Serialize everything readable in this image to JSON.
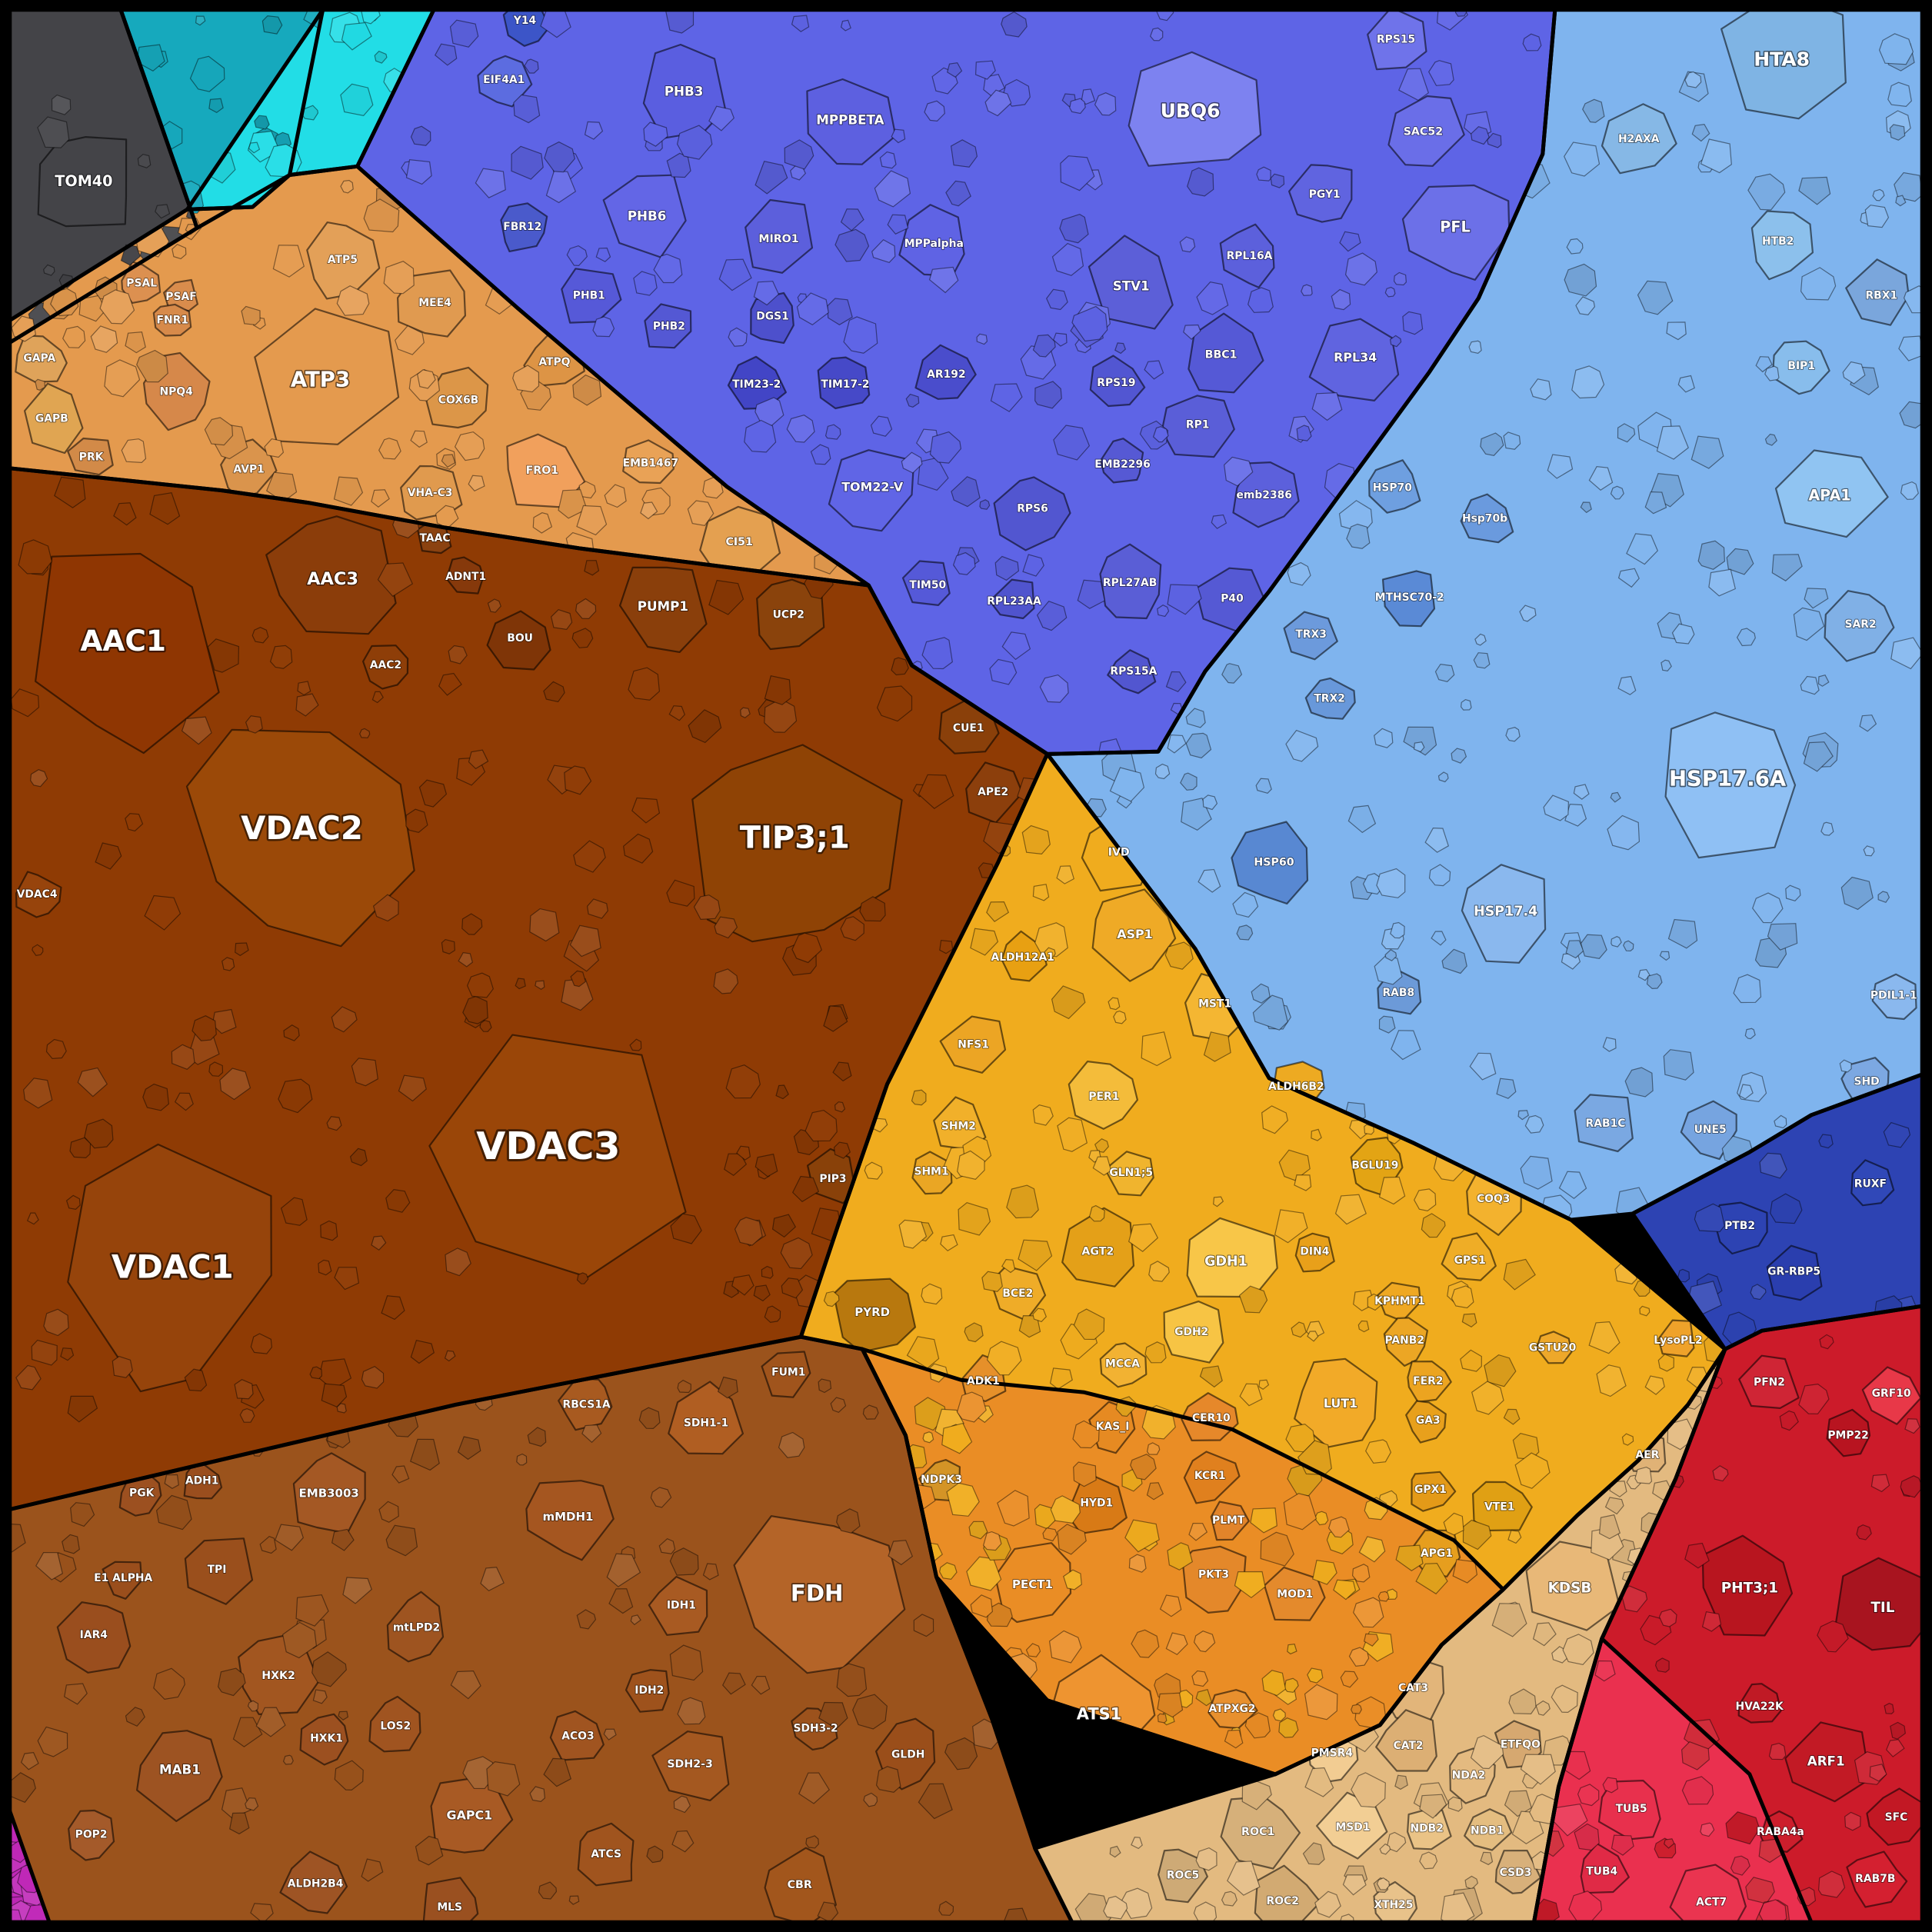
{
  "regions": [
    {
      "name": "gray",
      "color": "#444448"
    },
    {
      "name": "teal",
      "color": "#16a9bd"
    },
    {
      "name": "cyan",
      "color": "#22dde6"
    },
    {
      "name": "blue",
      "color": "#5e64e6"
    },
    {
      "name": "lblue",
      "color": "#7fb4ee"
    },
    {
      "name": "navy",
      "color": "#2d43b3"
    },
    {
      "name": "orange",
      "color": "#e49a4e"
    },
    {
      "name": "brown",
      "color": "#8f3b04"
    },
    {
      "name": "brown2",
      "color": "#9b531c"
    },
    {
      "name": "gold",
      "color": "#f0ac1e"
    },
    {
      "name": "amber",
      "color": "#ea8d25"
    },
    {
      "name": "tan",
      "color": "#e3ba80"
    },
    {
      "name": "red",
      "color": "#cc1b2a"
    },
    {
      "name": "pink",
      "color": "#ea304f"
    },
    {
      "name": "magenta",
      "color": "#c028b8"
    }
  ],
  "cells": [
    {
      "label": "TOM40",
      "color": "#444448",
      "size": 46
    },
    {
      "label": "AAC1",
      "color": "#8f3602",
      "size": 90
    },
    {
      "label": "AAC3",
      "color": "#8b3d0a",
      "size": 54
    },
    {
      "label": "AAC2",
      "color": "#8e3e08",
      "size": 22
    },
    {
      "label": "VDAC2",
      "color": "#9b4908",
      "size": 100
    },
    {
      "label": "VDAC3",
      "color": "#9a4608",
      "size": 118
    },
    {
      "label": "VDAC1",
      "color": "#96440b",
      "size": 100
    },
    {
      "label": "VDAC4",
      "color": "#97440c",
      "size": 20
    },
    {
      "label": "TIP3;1",
      "color": "#8f4305",
      "size": 96
    },
    {
      "label": "PUMP1",
      "color": "#8a3f0b",
      "size": 40
    },
    {
      "label": "UCP2",
      "color": "#8a430c",
      "size": 32
    },
    {
      "label": "BOU",
      "color": "#7f3507",
      "size": 28
    },
    {
      "label": "ADNT1",
      "color": "#86390b",
      "size": 18
    },
    {
      "label": "TAAC",
      "color": "#8b4210",
      "size": 16
    },
    {
      "label": "CUE1",
      "color": "#8a400a",
      "size": 26
    },
    {
      "label": "APE2",
      "color": "#8c3f0c",
      "size": 26
    },
    {
      "label": "PIP3",
      "color": "#894109",
      "size": 24
    },
    {
      "label": "ATP3",
      "color": "#e49a4e",
      "size": 66
    },
    {
      "label": "ATP5",
      "color": "#e3a058",
      "size": 32
    },
    {
      "label": "MEE4",
      "color": "#e09a50",
      "size": 32
    },
    {
      "label": "COX6B",
      "color": "#dc9648",
      "size": 28
    },
    {
      "label": "FRO1",
      "color": "#f1a05c",
      "size": 34
    },
    {
      "label": "EMB1467",
      "color": "#e9a256",
      "size": 22
    },
    {
      "label": "CI51",
      "color": "#e4a050",
      "size": 34
    },
    {
      "label": "ATPQ",
      "color": "#dd9445",
      "size": 24
    },
    {
      "label": "VHA-C3",
      "color": "#e09a4e",
      "size": 26
    },
    {
      "label": "AVP1",
      "color": "#da944c",
      "size": 24
    },
    {
      "label": "NPQ4",
      "color": "#d6884a",
      "size": 30
    },
    {
      "label": "GAPB",
      "color": "#e0a552",
      "size": 28
    },
    {
      "label": "GAPA",
      "color": "#dfa35a",
      "size": 22
    },
    {
      "label": "PRK",
      "color": "#d28a48",
      "size": 20
    },
    {
      "label": "PSAL",
      "color": "#dc9050",
      "size": 18
    },
    {
      "label": "PSAF",
      "color": "#d98c4c",
      "size": 16
    },
    {
      "label": "FNR1",
      "color": "#d78a4a",
      "size": 16
    },
    {
      "label": "PHB3",
      "color": "#5a5ee0",
      "size": 40
    },
    {
      "label": "MPPBETA",
      "color": "#5d60e0",
      "size": 40
    },
    {
      "label": "PHB6",
      "color": "#6366e6",
      "size": 40
    },
    {
      "label": "MIRO1",
      "color": "#5c5fdc",
      "size": 34
    },
    {
      "label": "MPPalpha",
      "color": "#5f63e4",
      "size": 32
    },
    {
      "label": "PHB1",
      "color": "#5659d8",
      "size": 26
    },
    {
      "label": "PHB2",
      "color": "#5458d4",
      "size": 22
    },
    {
      "label": "DGS1",
      "color": "#4d50cc",
      "size": 22
    },
    {
      "label": "TIM23-2",
      "color": "#4245c6",
      "size": 24
    },
    {
      "label": "TIM17-2",
      "color": "#4649c8",
      "size": 24
    },
    {
      "label": "AR192",
      "color": "#4a4dcc",
      "size": 26
    },
    {
      "label": "TOM22-V",
      "color": "#6065e6",
      "size": 38
    },
    {
      "label": "TIM50",
      "color": "#5559d8",
      "size": 22
    },
    {
      "label": "UBQ6",
      "color": "#7d82f0",
      "size": 60
    },
    {
      "label": "RPS15",
      "color": "#6f73ea",
      "size": 30
    },
    {
      "label": "SAC52",
      "color": "#6a6ee8",
      "size": 34
    },
    {
      "label": "PGY1",
      "color": "#6064e0",
      "size": 28
    },
    {
      "label": "PFL",
      "color": "#6c70e8",
      "size": 46
    },
    {
      "label": "STV1",
      "color": "#5c5fd8",
      "size": 40
    },
    {
      "label": "RPL16A",
      "color": "#5c60dc",
      "size": 26
    },
    {
      "label": "BBC1",
      "color": "#5559d6",
      "size": 34
    },
    {
      "label": "RPL34",
      "color": "#6064e0",
      "size": 38
    },
    {
      "label": "RP1",
      "color": "#5a5ed8",
      "size": 30
    },
    {
      "label": "RPS19",
      "color": "#5256d2",
      "size": 22
    },
    {
      "label": "EMB2296",
      "color": "#5659d4",
      "size": 20
    },
    {
      "label": "emb2386",
      "color": "#5c60dc",
      "size": 28
    },
    {
      "label": "RPS6",
      "color": "#5256d0",
      "size": 32
    },
    {
      "label": "RPL27AB",
      "color": "#5a5ed6",
      "size": 32
    },
    {
      "label": "P40",
      "color": "#5559d4",
      "size": 30
    },
    {
      "label": "RPL23AA",
      "color": "#5054ce",
      "size": 20
    },
    {
      "label": "RPS15A",
      "color": "#5256d0",
      "size": 20
    },
    {
      "label": "Y14",
      "color": "#3c55c8",
      "size": 20
    },
    {
      "label": "EIF4A1",
      "color": "#5c6ce0",
      "size": 22
    },
    {
      "label": "FBR12",
      "color": "#4a5acb",
      "size": 22
    },
    {
      "label": "HTA8",
      "color": "#7fb4e4",
      "size": 60
    },
    {
      "label": "H2AXA",
      "color": "#86b8e6",
      "size": 30
    },
    {
      "label": "HTB2",
      "color": "#8cc0ec",
      "size": 30
    },
    {
      "label": "RBX1",
      "color": "#7aa6dc",
      "size": 28
    },
    {
      "label": "BIP1",
      "color": "#88bdec",
      "size": 24
    },
    {
      "label": "APA1",
      "color": "#90c4f2",
      "size": 46
    },
    {
      "label": "SAR2",
      "color": "#80b0e6",
      "size": 30
    },
    {
      "label": "HSP17.6A",
      "color": "#8fc0f4",
      "size": 66
    },
    {
      "label": "HSP17.4",
      "color": "#8ab8ee",
      "size": 42
    },
    {
      "label": "HSP70",
      "color": "#6e9fe0",
      "size": 24
    },
    {
      "label": "Hsp70b",
      "color": "#6a9ade",
      "size": 24
    },
    {
      "label": "MTHSC70-2",
      "color": "#5a8ad6",
      "size": 26
    },
    {
      "label": "HSP60",
      "color": "#5888d2",
      "size": 34
    },
    {
      "label": "TRX3",
      "color": "#6c9adc",
      "size": 24
    },
    {
      "label": "TRX2",
      "color": "#6898da",
      "size": 20
    },
    {
      "label": "RAB1C",
      "color": "#7aa8e2",
      "size": 28
    },
    {
      "label": "UNE5",
      "color": "#76a4e0",
      "size": 24
    },
    {
      "label": "RAB8",
      "color": "#6c9ad8",
      "size": 22
    },
    {
      "label": "SHD",
      "color": "#7ca8e2",
      "size": 22
    },
    {
      "label": "PDIL1-1",
      "color": "#8ab8ee",
      "size": 20
    },
    {
      "label": "PTB2",
      "color": "#2d43b3",
      "size": 24
    },
    {
      "label": "GR-RBP5",
      "color": "#2a3eae",
      "size": 26
    },
    {
      "label": "RUXF",
      "color": "#3048b8",
      "size": 20
    },
    {
      "label": "TIL",
      "color": "#a8141f",
      "size": 44
    },
    {
      "label": "PHT3;1",
      "color": "#b8151f",
      "size": 44
    },
    {
      "label": "ARF1",
      "color": "#c21a25",
      "size": 40
    },
    {
      "label": "PFN2",
      "color": "#cf2535",
      "size": 28
    },
    {
      "label": "GRF10",
      "color": "#e83848",
      "size": 24
    },
    {
      "label": "PMP22",
      "color": "#b81420",
      "size": 20
    },
    {
      "label": "HVA22K",
      "color": "#c01a25",
      "size": 18
    },
    {
      "label": "SFC",
      "color": "#c21824",
      "size": 24
    },
    {
      "label": "TUB5",
      "color": "#e8304d",
      "size": 28
    },
    {
      "label": "TUB4",
      "color": "#e02a46",
      "size": 22
    },
    {
      "label": "ACT7",
      "color": "#ea3450",
      "size": 32
    },
    {
      "label": "RAB7B",
      "color": "#d42030",
      "size": 24
    },
    {
      "label": "RABA4a",
      "color": "#cc1e2c",
      "size": 18
    },
    {
      "label": "IVD",
      "color": "#f0ac1e",
      "size": 34
    },
    {
      "label": "ASP1",
      "color": "#efaa26",
      "size": 38
    },
    {
      "label": "ALDH12A1",
      "color": "#e8a012",
      "size": 20
    },
    {
      "label": "MST1",
      "color": "#f4b632",
      "size": 30
    },
    {
      "label": "NFS1",
      "color": "#eca524",
      "size": 28
    },
    {
      "label": "PER1",
      "color": "#f4bc3a",
      "size": 30
    },
    {
      "label": "ALDH6B2",
      "color": "#edaa22",
      "size": 26
    },
    {
      "label": "SHM2",
      "color": "#f1b02a",
      "size": 24
    },
    {
      "label": "SHM1",
      "color": "#eaa624",
      "size": 20
    },
    {
      "label": "BGLU19",
      "color": "#e3a414",
      "size": 26
    },
    {
      "label": "GLN1;5",
      "color": "#f0b42e",
      "size": 20
    },
    {
      "label": "AGT2",
      "color": "#e4a018",
      "size": 34
    },
    {
      "label": "GDH1",
      "color": "#f8c648",
      "size": 42
    },
    {
      "label": "GDH2",
      "color": "#f7c444",
      "size": 28
    },
    {
      "label": "COQ3",
      "color": "#f3b22e",
      "size": 28
    },
    {
      "label": "GPS1",
      "color": "#efad26",
      "size": 22
    },
    {
      "label": "PYRD",
      "color": "#b8780e",
      "size": 36
    },
    {
      "label": "BCE2",
      "color": "#efac28",
      "size": 24
    },
    {
      "label": "MCCA",
      "color": "#f2b232",
      "size": 20
    },
    {
      "label": "KPHMT1",
      "color": "#efa822",
      "size": 20
    },
    {
      "label": "PANB2",
      "color": "#eca624",
      "size": 20
    },
    {
      "label": "LUT1",
      "color": "#f2aa28",
      "size": 38
    },
    {
      "label": "FER2",
      "color": "#eca420",
      "size": 20
    },
    {
      "label": "GSTU20",
      "color": "#eea82a",
      "size": 16
    },
    {
      "label": "GA3",
      "color": "#e8a01c",
      "size": 18
    },
    {
      "label": "GPX1",
      "color": "#e49a18",
      "size": 20
    },
    {
      "label": "VTE1",
      "color": "#e0a014",
      "size": 26
    },
    {
      "label": "APG1",
      "color": "#e69e1e",
      "size": 22
    },
    {
      "label": "LysoPL2",
      "color": "#efa22a",
      "size": 18
    },
    {
      "label": "DIN4",
      "color": "#e8a01a",
      "size": 18
    },
    {
      "label": "KAS_I",
      "color": "#e68a22",
      "size": 22
    },
    {
      "label": "CER10",
      "color": "#e6882a",
      "size": 24
    },
    {
      "label": "HYD1",
      "color": "#d87a16",
      "size": 28
    },
    {
      "label": "KCR1",
      "color": "#e0801e",
      "size": 24
    },
    {
      "label": "PECT1",
      "color": "#ea8d25",
      "size": 36
    },
    {
      "label": "PKT3",
      "color": "#e4882a",
      "size": 30
    },
    {
      "label": "MOD1",
      "color": "#e48a2c",
      "size": 26
    },
    {
      "label": "ATS1",
      "color": "#ee9430",
      "size": 50
    },
    {
      "label": "ATPXG2",
      "color": "#e8902e",
      "size": 20
    },
    {
      "label": "ADK1",
      "color": "#e6902a",
      "size": 20
    },
    {
      "label": "NDPK3",
      "color": "#d49426",
      "size": 18
    },
    {
      "label": "PLMT",
      "color": "#e2842a",
      "size": 18
    },
    {
      "label": "KDSB",
      "color": "#e8b878",
      "size": 44
    },
    {
      "label": "CAT3",
      "color": "#e2b57a",
      "size": 32
    },
    {
      "label": "CAT2",
      "color": "#dcaf74",
      "size": 28
    },
    {
      "label": "ETFQO",
      "color": "#d6a870",
      "size": 22
    },
    {
      "label": "NDA2",
      "color": "#e4ba80",
      "size": 22
    },
    {
      "label": "PMSR4",
      "color": "#f2cc92",
      "size": 24
    },
    {
      "label": "MSD1",
      "color": "#f2ce94",
      "size": 28
    },
    {
      "label": "NDB2",
      "color": "#eac386",
      "size": 20
    },
    {
      "label": "NDB1",
      "color": "#e4bd80",
      "size": 20
    },
    {
      "label": "ROC1",
      "color": "#d6b07a",
      "size": 34
    },
    {
      "label": "ROC2",
      "color": "#d2aa72",
      "size": 30
    },
    {
      "label": "ROC5",
      "color": "#ceaa76",
      "size": 24
    },
    {
      "label": "XTH25",
      "color": "#e8c28a",
      "size": 20
    },
    {
      "label": "CSD3",
      "color": "#d8b07a",
      "size": 20
    },
    {
      "label": "AER",
      "color": "#e0b276",
      "size": 18
    },
    {
      "label": "SDH1-1",
      "color": "#b05e22",
      "size": 32
    },
    {
      "label": "mMDH1",
      "color": "#a55620",
      "size": 36
    },
    {
      "label": "FDH",
      "color": "#b46428",
      "size": 70
    },
    {
      "label": "RBCS1A",
      "color": "#a85a20",
      "size": 22
    },
    {
      "label": "FUM1",
      "color": "#a0541c",
      "size": 22
    },
    {
      "label": "IDH1",
      "color": "#a85a22",
      "size": 26
    },
    {
      "label": "IDH2",
      "color": "#9e521c",
      "size": 20
    },
    {
      "label": "SDH2-3",
      "color": "#a45820",
      "size": 34
    },
    {
      "label": "SDH3-2",
      "color": "#9c521c",
      "size": 20
    },
    {
      "label": "ACO3",
      "color": "#a05420",
      "size": 22
    },
    {
      "label": "ATCS",
      "color": "#a0541e",
      "size": 28
    },
    {
      "label": "GLDH",
      "color": "#9a4e1a",
      "size": 28
    },
    {
      "label": "CBR",
      "color": "#a2561c",
      "size": 34
    },
    {
      "label": "EMB3003",
      "color": "#a45824",
      "size": 36
    },
    {
      "label": "mtLPD2",
      "color": "#9e5420",
      "size": 28
    },
    {
      "label": "TPI",
      "color": "#9a4f1c",
      "size": 32
    },
    {
      "label": "IAR4",
      "color": "#9a4e1e",
      "size": 32
    },
    {
      "label": "HXK2",
      "color": "#a25620",
      "size": 34
    },
    {
      "label": "HXK1",
      "color": "#9c5020",
      "size": 22
    },
    {
      "label": "LOS2",
      "color": "#a05420",
      "size": 24
    },
    {
      "label": "MAB1",
      "color": "#9d5322",
      "size": 40
    },
    {
      "label": "GAPC1",
      "color": "#a85a24",
      "size": 38
    },
    {
      "label": "ALDH2B4",
      "color": "#9e5424",
      "size": 28
    },
    {
      "label": "POP2",
      "color": "#a45a2a",
      "size": 22
    },
    {
      "label": "MLS",
      "color": "#9a5020",
      "size": 26
    },
    {
      "label": "PGK",
      "color": "#9c5020",
      "size": 20
    },
    {
      "label": "ADH1",
      "color": "#9a4e1e",
      "size": 18
    },
    {
      "label": "E1 ALPHA",
      "color": "#9a4e1c",
      "size": 18
    }
  ]
}
